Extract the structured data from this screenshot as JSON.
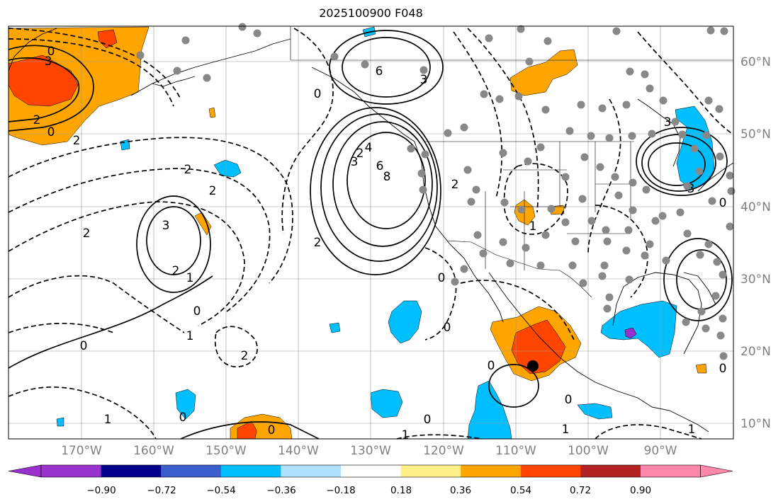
{
  "title": "2025100900 F048",
  "lon_labels": [
    "170°W",
    "160°W",
    "150°W",
    "140°W",
    "130°W",
    "120°W",
    "110°W",
    "100°W",
    "90°W"
  ],
  "lat_labels": [
    "60°N",
    "50°N",
    "40°N",
    "30°N",
    "20°N",
    "10°N"
  ],
  "colorbar": {
    "tick_labels": [
      "−0.90",
      "−0.72",
      "−0.54",
      "−0.36",
      "−0.18",
      "0.18",
      "0.36",
      "0.54",
      "0.72",
      "0.90"
    ],
    "colors": [
      "#9932cc",
      "#00008b",
      "#3a5fcd",
      "#00bfff",
      "#b0e2ff",
      "#ffffff",
      "#fff08a",
      "#ffa500",
      "#ff4500",
      "#b22222",
      "#ff88aa"
    ]
  },
  "contour_labels": [
    "3",
    "0",
    "2",
    "0",
    "2",
    "0",
    "6",
    "3",
    "2",
    "3",
    "4",
    "6",
    "8",
    "2",
    "2",
    "3",
    "2",
    "2",
    "1",
    "0",
    "1",
    "0",
    "2",
    "0",
    "1",
    "0",
    "1",
    "0",
    "2",
    "0",
    "0",
    "1",
    "2",
    "0",
    "0",
    "1",
    "0",
    "1",
    "3",
    "0",
    "3"
  ],
  "colors": {
    "map_border": "#000000",
    "grid": "#999999",
    "station": "#888888",
    "tick_label": "#808080"
  }
}
